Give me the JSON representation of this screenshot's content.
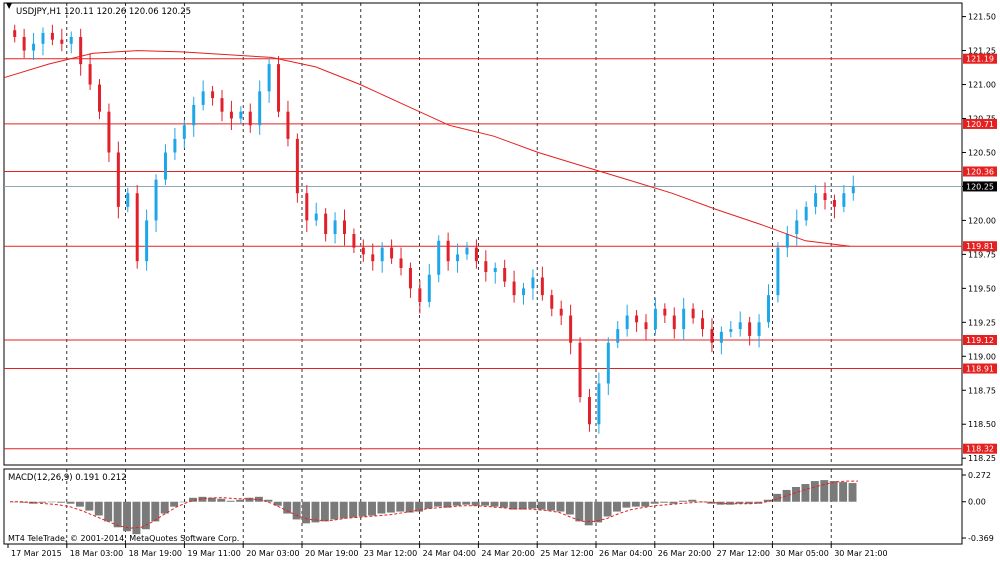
{
  "header": {
    "symbol_label": "USDJPY,H1  120.11 120.26 120.06 120.25",
    "indicator_label": "MACD(12,26,9) 0.191 0.212",
    "copyright": "MT4 TeleTrade, © 2001-2014, MetaQuotes Software Corp."
  },
  "chart_data": [
    {
      "type": "candlestick",
      "title": "USDJPY,H1",
      "ohlc_last": {
        "open": 120.11,
        "high": 120.26,
        "low": 120.06,
        "close": 120.25
      },
      "ylim": [
        118.2,
        121.6
      ],
      "yticks": [
        121.5,
        121.25,
        121.0,
        120.75,
        120.5,
        120.25,
        120.0,
        119.75,
        119.5,
        119.25,
        119.0,
        118.75,
        118.5,
        118.25
      ],
      "ytick_labels": [
        "121.50",
        "121.25",
        "121.00",
        "120.75",
        "120.50",
        "120.25",
        "120.00",
        "119.75",
        "119.50",
        "119.25",
        "119.00",
        "118.75",
        "118.50",
        "118.25"
      ],
      "xtick_labels": [
        "17 Mar 2015",
        "18 Mar 03:00",
        "18 Mar 19:00",
        "19 Mar 11:00",
        "20 Mar 03:00",
        "20 Mar 19:00",
        "23 Mar 12:00",
        "24 Mar 04:00",
        "24 Mar 20:00",
        "25 Mar 12:00",
        "26 Mar 04:00",
        "26 Mar 20:00",
        "27 Mar 12:00",
        "30 Mar 05:00",
        "30 Mar 21:00"
      ],
      "hlines": [
        {
          "value": 121.19,
          "label": "121.19"
        },
        {
          "value": 120.71,
          "label": "120.71"
        },
        {
          "value": 120.36,
          "label": "120.36"
        },
        {
          "value": 119.81,
          "label": "119.81"
        },
        {
          "value": 119.12,
          "label": "119.12"
        },
        {
          "value": 118.91,
          "label": "118.91"
        },
        {
          "value": 118.32,
          "label": "118.32"
        }
      ],
      "current_price": {
        "value": 120.25,
        "label": "120.25"
      },
      "close_series": [
        121.35,
        121.25,
        121.3,
        121.38,
        121.33,
        121.3,
        121.35,
        121.15,
        121.0,
        120.8,
        120.5,
        120.1,
        120.2,
        119.7,
        120.0,
        120.3,
        120.5,
        120.6,
        120.7,
        120.85,
        120.95,
        120.9,
        120.8,
        120.75,
        120.8,
        120.7,
        120.95,
        121.15,
        120.8,
        120.6,
        120.2,
        120.0,
        120.05,
        119.9,
        120.0,
        119.9,
        119.8,
        119.75,
        119.7,
        119.8,
        119.72,
        119.65,
        119.5,
        119.4,
        119.6,
        119.85,
        119.7,
        119.75,
        119.8,
        119.7,
        119.62,
        119.65,
        119.55,
        119.45,
        119.5,
        119.58,
        119.45,
        119.35,
        119.3,
        119.1,
        118.7,
        118.5,
        118.8,
        119.1,
        119.2,
        119.3,
        119.25,
        119.2,
        119.35,
        119.3,
        119.2,
        119.35,
        119.28,
        119.2,
        119.1,
        119.18,
        119.2,
        119.25,
        119.15,
        119.25,
        119.45,
        119.8,
        119.9,
        120.0,
        120.1,
        120.2,
        120.15,
        120.1,
        120.2,
        120.25
      ],
      "ma_series": [
        121.05,
        121.15,
        121.23,
        121.25,
        121.24,
        121.22,
        121.2,
        121.13,
        121.0,
        120.85,
        120.7,
        120.62,
        120.5,
        120.4,
        120.3,
        120.2,
        120.08,
        119.97,
        119.85,
        119.81
      ]
    },
    {
      "type": "bar",
      "title": "MACD(12,26,9)",
      "macd": 0.191,
      "signal": 0.212,
      "ylim": [
        -0.369,
        0.272
      ],
      "ytick_labels": [
        "0.272",
        "0.00",
        "-0.369"
      ],
      "histogram": [
        0.0,
        -0.01,
        -0.02,
        -0.01,
        0.0,
        -0.01,
        -0.02,
        -0.05,
        -0.09,
        -0.14,
        -0.2,
        -0.26,
        -0.3,
        -0.33,
        -0.28,
        -0.2,
        -0.12,
        -0.05,
        0.0,
        0.04,
        0.05,
        0.04,
        0.03,
        0.01,
        0.02,
        0.04,
        0.05,
        0.02,
        -0.04,
        -0.12,
        -0.18,
        -0.22,
        -0.21,
        -0.2,
        -0.18,
        -0.17,
        -0.16,
        -0.15,
        -0.14,
        -0.12,
        -0.11,
        -0.1,
        -0.11,
        -0.1,
        -0.07,
        -0.05,
        -0.06,
        -0.04,
        -0.03,
        -0.04,
        -0.04,
        -0.05,
        -0.06,
        -0.08,
        -0.08,
        -0.07,
        -0.08,
        -0.09,
        -0.1,
        -0.13,
        -0.2,
        -0.24,
        -0.21,
        -0.15,
        -0.1,
        -0.06,
        -0.05,
        -0.05,
        -0.02,
        -0.01,
        -0.02,
        0.01,
        0.02,
        0.0,
        -0.02,
        -0.03,
        -0.03,
        -0.02,
        -0.02,
        -0.02,
        0.02,
        0.08,
        0.12,
        0.15,
        0.18,
        0.21,
        0.22,
        0.21,
        0.2,
        0.19
      ],
      "signal_series": [
        0.0,
        0.0,
        -0.01,
        -0.02,
        -0.03,
        -0.05,
        -0.09,
        -0.14,
        -0.19,
        -0.24,
        -0.27,
        -0.26,
        -0.2,
        -0.12,
        -0.05,
        0.0,
        0.03,
        0.04,
        0.04,
        0.03,
        0.03,
        0.02,
        -0.02,
        -0.08,
        -0.14,
        -0.18,
        -0.19,
        -0.19,
        -0.17,
        -0.16,
        -0.15,
        -0.14,
        -0.13,
        -0.11,
        -0.09,
        -0.07,
        -0.06,
        -0.05,
        -0.04,
        -0.04,
        -0.05,
        -0.06,
        -0.07,
        -0.07,
        -0.08,
        -0.09,
        -0.11,
        -0.16,
        -0.2,
        -0.2,
        -0.17,
        -0.12,
        -0.08,
        -0.06,
        -0.04,
        -0.03,
        -0.02,
        -0.01,
        0.0,
        -0.01,
        -0.02,
        -0.02,
        -0.02,
        -0.01,
        0.02,
        0.06,
        0.1,
        0.14,
        0.17,
        0.2,
        0.21,
        0.21
      ]
    }
  ],
  "colors": {
    "bull": "#1ea7e8",
    "bear": "#e0202a",
    "level_line": "#e52020",
    "ma_line": "#e52020",
    "grid": "#000000",
    "label_bg": "#e52020",
    "current_bg": "#000000",
    "macd_bar": "#7a7a7a",
    "signal_line": "#e52020",
    "current_line": "#8fa7b3"
  }
}
